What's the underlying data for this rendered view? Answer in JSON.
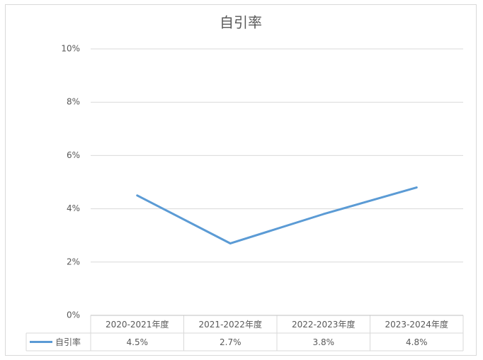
{
  "chart_data": {
    "type": "line",
    "title": "自引率",
    "categories": [
      "2020-2021年度",
      "2021-2022年度",
      "2022-2023年度",
      "2023-2024年度"
    ],
    "series": [
      {
        "name": "自引率",
        "color": "#5b9bd5",
        "values": [
          4.5,
          2.7,
          3.8,
          4.8
        ],
        "value_labels": [
          "4.5%",
          "2.7%",
          "3.8%",
          "4.8%"
        ]
      }
    ],
    "ylim": [
      0,
      10
    ],
    "yticks": [
      {
        "value": 0,
        "label": "0%"
      },
      {
        "value": 2,
        "label": "2%"
      },
      {
        "value": 4,
        "label": "4%"
      },
      {
        "value": 6,
        "label": "6%"
      },
      {
        "value": 8,
        "label": "8%"
      },
      {
        "value": 10,
        "label": "10%"
      }
    ],
    "grid": true,
    "data_table": true
  }
}
